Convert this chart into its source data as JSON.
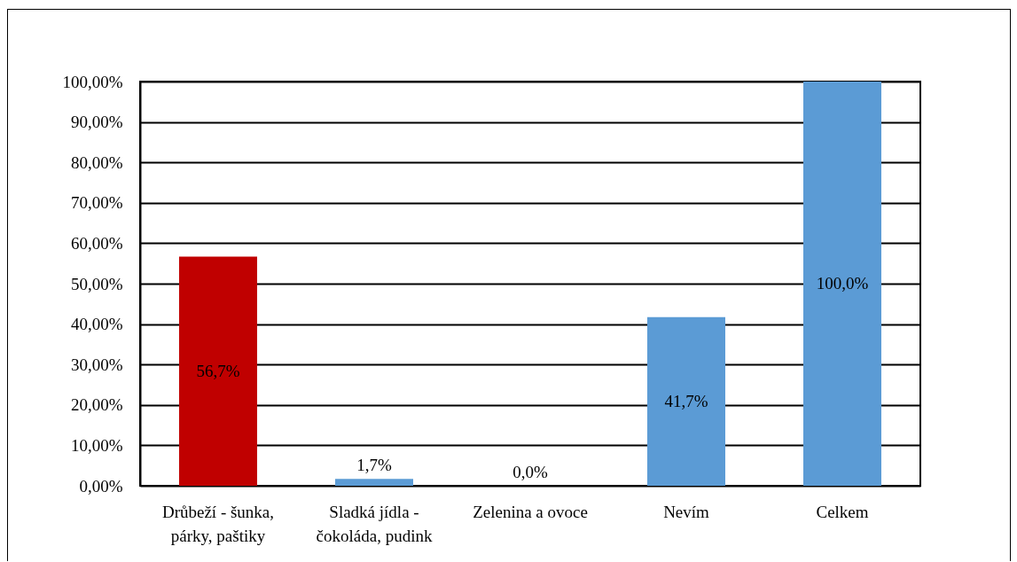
{
  "chart_data": {
    "type": "bar",
    "categories": [
      "Drůbeží - šunka, párky, paštiky",
      "Sladká jídla - čokoláda, pudink",
      "Zelenina a ovoce",
      "Nevím",
      "Celkem"
    ],
    "values": [
      56.7,
      1.7,
      0.0,
      41.7,
      100.0
    ],
    "colors": [
      "#c00000",
      "#5b9bd5",
      "#5b9bd5",
      "#5b9bd5",
      "#5b9bd5"
    ],
    "value_labels": [
      "56,7%",
      "1,7%",
      "0,0%",
      "41,7%",
      "100,0%"
    ],
    "ylim": [
      0,
      100
    ],
    "yticks": [
      {
        "value": 0,
        "label": "0,00%"
      },
      {
        "value": 10,
        "label": "10,00%"
      },
      {
        "value": 20,
        "label": "20,00%"
      },
      {
        "value": 30,
        "label": "30,00%"
      },
      {
        "value": 40,
        "label": "40,00%"
      },
      {
        "value": 50,
        "label": "50,00%"
      },
      {
        "value": 60,
        "label": "60,00%"
      },
      {
        "value": 70,
        "label": "70,00%"
      },
      {
        "value": 80,
        "label": "80,00%"
      },
      {
        "value": 90,
        "label": "90,00%"
      },
      {
        "value": 100,
        "label": "100,00%"
      }
    ],
    "grid": "y"
  }
}
